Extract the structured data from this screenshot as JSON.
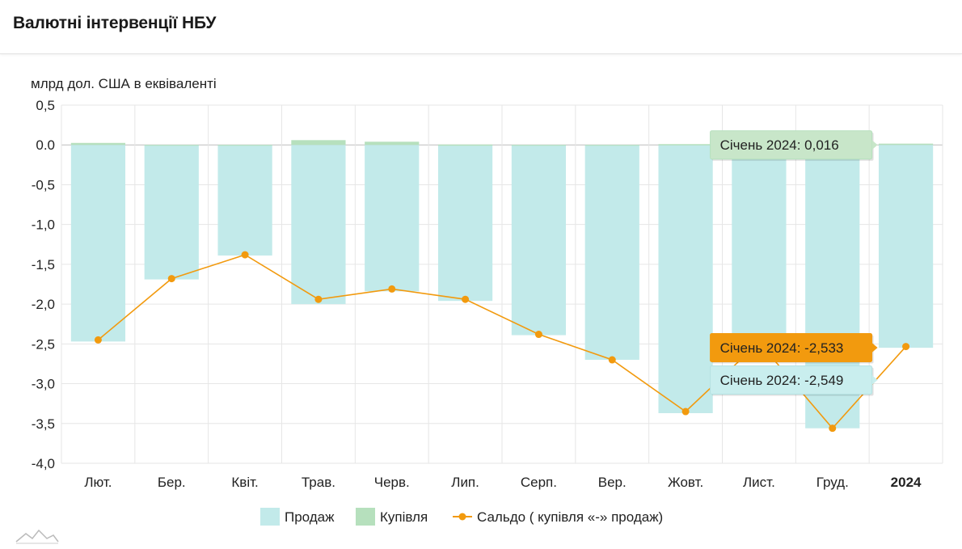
{
  "header": {
    "title": "Валютні інтервенції НБУ"
  },
  "chart_data": {
    "type": "bar",
    "ylabel": "млрд дол. США в еквіваленті",
    "ylim": [
      -4.0,
      0.5
    ],
    "yticks": [
      "0,5",
      "0.0",
      "-0,5",
      "-1,0",
      "-1,5",
      "-2,0",
      "-2,5",
      "-3,0",
      "-3,5",
      "-4,0"
    ],
    "ytick_values": [
      0.5,
      0.0,
      -0.5,
      -1.0,
      -1.5,
      -2.0,
      -2.5,
      -3.0,
      -3.5,
      -4.0
    ],
    "categories": [
      "Лют.",
      "Бер.",
      "Квіт.",
      "Трав.",
      "Черв.",
      "Лип.",
      "Серп.",
      "Вер.",
      "Жовт.",
      "Лист.",
      "Груд.",
      "2024"
    ],
    "bold_categories": [
      "2024"
    ],
    "grid": true,
    "legend_position": "bottom",
    "series": [
      {
        "name": "Продаж",
        "type": "bar",
        "color": "#c2eaea",
        "values": [
          -2.47,
          -1.69,
          -1.39,
          -2.0,
          -1.84,
          -1.96,
          -2.39,
          -2.7,
          -3.37,
          -2.47,
          -3.56,
          -2.549
        ]
      },
      {
        "name": "Купівля",
        "type": "bar",
        "color": "#b6e0bd",
        "values": [
          0.025,
          0.0,
          0.0,
          0.06,
          0.04,
          0.005,
          0.0,
          0.0,
          0.01,
          0.0,
          0.0,
          0.016
        ]
      },
      {
        "name": "Сальдо ( купівля «-» продаж)",
        "type": "line",
        "color": "#f29a0e",
        "values": [
          -2.45,
          -1.68,
          -1.38,
          -1.94,
          -1.81,
          -1.94,
          -2.38,
          -2.7,
          -3.35,
          -2.48,
          -3.56,
          -2.533
        ]
      }
    ],
    "tooltips": [
      {
        "text": "Січень 2024: 0,016",
        "series": 1,
        "index": 11,
        "bg": "#c8e6c9",
        "border": "#b6e0bd",
        "color": "#222"
      },
      {
        "text": "Січень 2024: -2,533",
        "series": 2,
        "index": 11,
        "bg": "#f29a0e",
        "border": "#f29a0e",
        "color": "#222"
      },
      {
        "text": "Січень 2024: -2,549",
        "series": 0,
        "index": 11,
        "bg": "#c9eeee",
        "border": "#b5e2e2",
        "color": "#222"
      }
    ]
  }
}
